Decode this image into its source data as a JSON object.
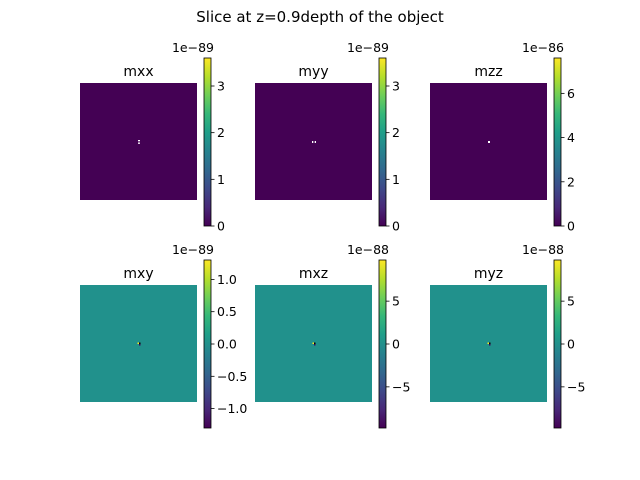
{
  "figure": {
    "suptitle": "Slice at z=0.9depth of the object"
  },
  "colors": {
    "viridis": [
      "#440154",
      "#482878",
      "#3e4989",
      "#31688e",
      "#26828e",
      "#1f9e89",
      "#35b779",
      "#6ece58",
      "#b5de2b",
      "#fde725"
    ],
    "background_low": "#440154",
    "background_mid": "#21918c"
  },
  "chart_data": [
    {
      "type": "heatmap",
      "title": "mxx",
      "background": "#440154",
      "center_marks": "white-dots",
      "colorbar": {
        "min": 0,
        "max": 3.6,
        "ticks": [
          0,
          1,
          2,
          3
        ],
        "tick_labels": [
          "0",
          "1",
          "2",
          "3"
        ],
        "offset_text": "1e−89"
      }
    },
    {
      "type": "heatmap",
      "title": "myy",
      "background": "#440154",
      "center_marks": "white-dots",
      "colorbar": {
        "min": 0,
        "max": 3.6,
        "ticks": [
          0,
          1,
          2,
          3
        ],
        "tick_labels": [
          "0",
          "1",
          "2",
          "3"
        ],
        "offset_text": "1e−89"
      }
    },
    {
      "type": "heatmap",
      "title": "mzz",
      "background": "#440154",
      "center_marks": "white-dot",
      "colorbar": {
        "min": 0,
        "max": 7.6,
        "ticks": [
          0,
          2,
          4,
          6
        ],
        "tick_labels": [
          "0",
          "2",
          "4",
          "6"
        ],
        "offset_text": "1e−86"
      }
    },
    {
      "type": "heatmap",
      "title": "mxy",
      "background": "#21918c",
      "center_marks": "yellow-purple-dots",
      "colorbar": {
        "min": -1.3,
        "max": 1.3,
        "ticks": [
          -1.0,
          -0.5,
          0.0,
          0.5,
          1.0
        ],
        "tick_labels": [
          "−1.0",
          "−0.5",
          "0.0",
          "0.5",
          "1.0"
        ],
        "offset_text": "1e−89"
      }
    },
    {
      "type": "heatmap",
      "title": "mxz",
      "background": "#21918c",
      "center_marks": "yellow-purple-dots",
      "colorbar": {
        "min": -9.8,
        "max": 9.8,
        "ticks": [
          -5,
          0,
          5
        ],
        "tick_labels": [
          "−5",
          "0",
          "5"
        ],
        "offset_text": "1e−88"
      }
    },
    {
      "type": "heatmap",
      "title": "myz",
      "background": "#21918c",
      "center_marks": "yellow-purple-dots",
      "colorbar": {
        "min": -9.8,
        "max": 9.8,
        "ticks": [
          -5,
          0,
          5
        ],
        "tick_labels": [
          "−5",
          "0",
          "5"
        ],
        "offset_text": "1e−88"
      }
    }
  ]
}
